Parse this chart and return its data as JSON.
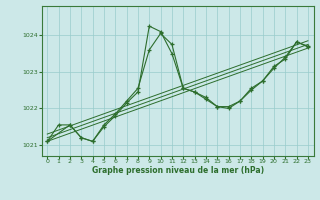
{
  "title": "Graphe pression niveau de la mer (hPa)",
  "background_color": "#cce8e8",
  "grid_color": "#99cccc",
  "line_color": "#2d6e2d",
  "spine_color": "#3a7a3a",
  "xlim": [
    -0.5,
    23.5
  ],
  "ylim": [
    1020.7,
    1024.8
  ],
  "yticks": [
    1021,
    1022,
    1023,
    1024
  ],
  "xticks": [
    0,
    1,
    2,
    3,
    4,
    5,
    6,
    7,
    8,
    9,
    10,
    11,
    12,
    13,
    14,
    15,
    16,
    17,
    18,
    19,
    20,
    21,
    22,
    23
  ],
  "line1_x": [
    0,
    1,
    2,
    3,
    4,
    5,
    6,
    7,
    8,
    9,
    10,
    11,
    12,
    13,
    14,
    15,
    16,
    17,
    18,
    19,
    20,
    21,
    22,
    23
  ],
  "line1_y": [
    1021.1,
    1021.55,
    1021.55,
    1021.2,
    1021.1,
    1021.5,
    1021.8,
    1022.15,
    1022.45,
    1024.25,
    1024.1,
    1023.5,
    1022.55,
    1022.45,
    1022.25,
    1022.05,
    1022.05,
    1022.2,
    1022.5,
    1022.75,
    1023.15,
    1023.35,
    1023.82,
    1023.7
  ],
  "line2_x": [
    0,
    2,
    3,
    4,
    5,
    6,
    7,
    8,
    9,
    10,
    11,
    12,
    13,
    14,
    15,
    16,
    17,
    18,
    19,
    20,
    21,
    22,
    23
  ],
  "line2_y": [
    1021.1,
    1021.55,
    1021.2,
    1021.1,
    1021.55,
    1021.85,
    1022.2,
    1022.55,
    1023.6,
    1024.05,
    1023.75,
    1022.55,
    1022.45,
    1022.3,
    1022.05,
    1022.0,
    1022.2,
    1022.55,
    1022.75,
    1023.1,
    1023.4,
    1023.82,
    1023.68
  ],
  "reg_lines": [
    {
      "x": [
        0,
        23
      ],
      "y": [
        1021.1,
        1023.65
      ]
    },
    {
      "x": [
        0,
        23
      ],
      "y": [
        1021.2,
        1023.75
      ]
    },
    {
      "x": [
        0,
        23
      ],
      "y": [
        1021.3,
        1023.85
      ]
    }
  ]
}
